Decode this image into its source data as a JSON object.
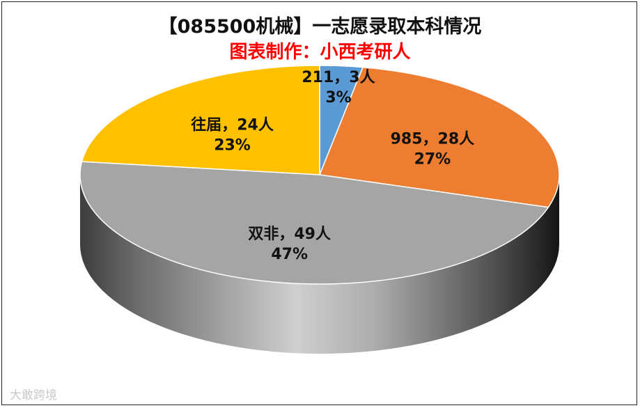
{
  "chart_data": {
    "type": "pie",
    "title": "【085500机械】一志愿录取本科情况",
    "subtitle": "图表制作：小西考研人",
    "slices": [
      {
        "name": "211",
        "count": 3,
        "percent": 3,
        "label_line1": "211，3人",
        "label_line2": "3%",
        "color": "#5B9BD5"
      },
      {
        "name": "985",
        "count": 28,
        "percent": 27,
        "label_line1": "985，28人",
        "label_line2": "27%",
        "color": "#ED7D31"
      },
      {
        "name": "双非",
        "count": 49,
        "percent": 47,
        "label_line1": "双非，49人",
        "label_line2": "47%",
        "color": "#A5A5A5"
      },
      {
        "name": "往届",
        "count": 24,
        "percent": 23,
        "label_line1": "往届，24人",
        "label_line2": "23%",
        "color": "#FFC000"
      }
    ]
  },
  "colors": {
    "subtitle": "#ff0000"
  },
  "watermark": "大敢跨境"
}
